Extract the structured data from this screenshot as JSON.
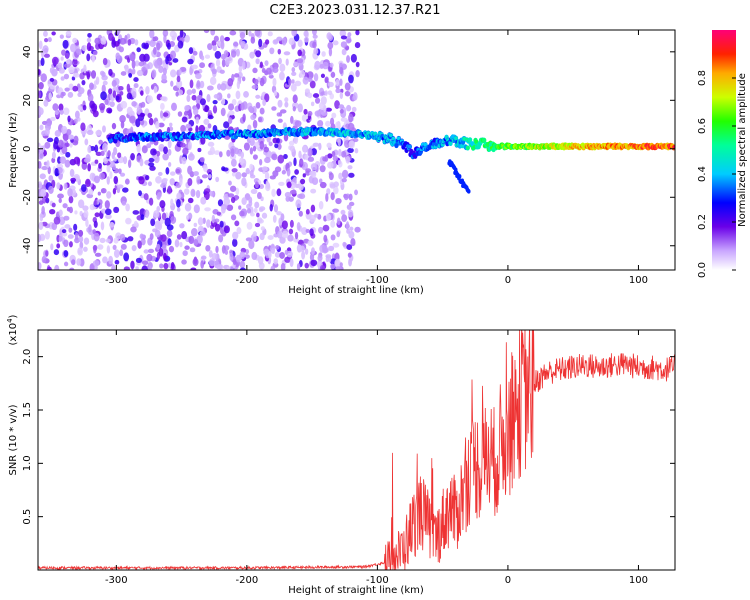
{
  "title": "C2E3.2023.031.12.37.R21",
  "chart_data": [
    {
      "type": "heatmap",
      "xlabel": "Height of straight line (km)",
      "ylabel": "Frequency (Hz)",
      "xlim": [
        -360,
        128
      ],
      "ylim": [
        -50,
        49
      ],
      "xticks": [
        -300,
        -200,
        -100,
        0,
        100
      ],
      "yticks": [
        -40,
        -20,
        0,
        20,
        40
      ],
      "ridge": {
        "x": [
          -305,
          -280,
          -250,
          -220,
          -200,
          -170,
          -150,
          -130,
          -115,
          -100,
          -90,
          -80,
          -72,
          -65,
          -55,
          -45,
          -38,
          -30,
          -20,
          -10,
          0,
          20,
          50,
          80,
          110,
          128
        ],
        "freq": [
          4,
          5,
          5,
          6,
          6,
          7,
          7,
          7,
          6,
          5,
          4,
          2,
          -2,
          0,
          2,
          4,
          3,
          2,
          2,
          1,
          1,
          1,
          1,
          1,
          1,
          1
        ],
        "amplitude": [
          0.3,
          0.35,
          0.35,
          0.35,
          0.38,
          0.4,
          0.4,
          0.42,
          0.4,
          0.4,
          0.38,
          0.35,
          0.3,
          0.35,
          0.38,
          0.4,
          0.42,
          0.5,
          0.55,
          0.6,
          0.65,
          0.7,
          0.8,
          0.85,
          0.9,
          0.9
        ]
      },
      "colorbar": {
        "label": "Normalized spectral amplitude",
        "ticks": [
          "0.0",
          "0.2",
          "0.4",
          "0.6",
          "0.8"
        ],
        "range": [
          0,
          1
        ]
      }
    },
    {
      "type": "line",
      "xlabel": "Height of straight line (km)",
      "ylabel": "SNR (10 * v/v)",
      "yunit": "(x10",
      "yunit_exp": "4",
      "yunit_close": ")",
      "xlim": [
        -360,
        128
      ],
      "ylim": [
        0,
        2.25
      ],
      "xticks": [
        -300,
        -200,
        -100,
        0,
        100
      ],
      "yticks": [
        "0.5",
        "1.0",
        "1.5",
        "2.0"
      ],
      "color": "#ee3333",
      "series": [
        {
          "name": "SNR",
          "x": [
            -360,
            -200,
            -110,
            -90,
            -80,
            -72,
            -66,
            -60,
            -55,
            -48,
            -44,
            -40,
            -35,
            -30,
            -25,
            -20,
            -15,
            -10,
            -5,
            0,
            5,
            10,
            15,
            20,
            30,
            40,
            50,
            60,
            70,
            80,
            90,
            100,
            110,
            120,
            128
          ],
          "y": [
            0.02,
            0.02,
            0.03,
            0.08,
            0.2,
            0.45,
            0.55,
            0.4,
            0.3,
            0.5,
            0.6,
            0.5,
            0.7,
            0.9,
            1.0,
            0.95,
            1.1,
            1.0,
            1.2,
            1.3,
            1.45,
            1.6,
            1.7,
            1.75,
            1.85,
            1.88,
            1.9,
            1.92,
            1.9,
            1.92,
            1.93,
            1.9,
            1.9,
            1.88,
            1.9
          ]
        }
      ]
    }
  ]
}
